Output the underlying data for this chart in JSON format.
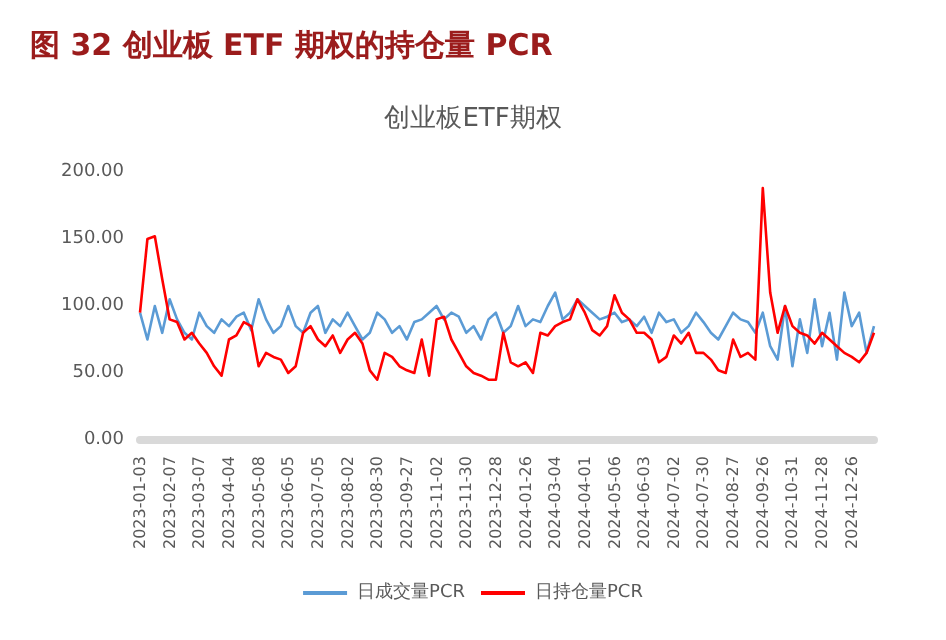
{
  "chart_data": {
    "type": "line",
    "title": "图 32 创业板 ETF 期权的持仓量 PCR",
    "subtitle": "创业板ETF期权",
    "categories": [
      "2023-01-03",
      null,
      null,
      null,
      "2023-02-07",
      null,
      null,
      null,
      "2023-03-07",
      null,
      null,
      null,
      "2023-04-04",
      null,
      null,
      null,
      "2023-05-08",
      null,
      null,
      null,
      "2023-06-05",
      null,
      null,
      null,
      "2023-07-05",
      null,
      null,
      null,
      "2023-08-02",
      null,
      null,
      null,
      "2023-08-30",
      null,
      null,
      null,
      "2023-09-27",
      null,
      null,
      null,
      "2023-11-02",
      null,
      null,
      null,
      "2023-11-30",
      null,
      null,
      null,
      "2023-12-28",
      null,
      null,
      null,
      "2024-01-26",
      null,
      null,
      null,
      "2024-03-04",
      null,
      null,
      null,
      "2024-04-01",
      null,
      null,
      null,
      "2024-05-06",
      null,
      null,
      null,
      "2024-06-03",
      null,
      null,
      null,
      "2024-07-02",
      null,
      null,
      null,
      "2024-07-30",
      null,
      null,
      null,
      "2024-08-27",
      null,
      null,
      null,
      "2024-09-26",
      null,
      null,
      null,
      "2024-10-31",
      null,
      null,
      null,
      "2024-11-28",
      null,
      null,
      null,
      "2024-12-26",
      null,
      null,
      null
    ],
    "series": [
      {
        "name": "日成交量PCR",
        "color": "#5b9bd5",
        "values": [
          95,
          75,
          100,
          80,
          105,
          90,
          80,
          75,
          95,
          85,
          80,
          90,
          85,
          92,
          95,
          82,
          105,
          90,
          80,
          85,
          100,
          85,
          80,
          95,
          100,
          80,
          90,
          85,
          95,
          85,
          75,
          80,
          95,
          90,
          80,
          85,
          75,
          88,
          90,
          95,
          100,
          90,
          95,
          92,
          80,
          85,
          75,
          90,
          95,
          80,
          85,
          100,
          85,
          90,
          88,
          100,
          110,
          90,
          95,
          105,
          100,
          95,
          90,
          92,
          95,
          88,
          90,
          85,
          92,
          80,
          95,
          88,
          90,
          80,
          85,
          95,
          88,
          80,
          75,
          85,
          95,
          90,
          88,
          80,
          95,
          70,
          60,
          100,
          55,
          90,
          65,
          105,
          70,
          95,
          60,
          110,
          85,
          95,
          65,
          85
        ]
      },
      {
        "name": "日持仓量PCR",
        "color": "#ff0000",
        "values": [
          95,
          150,
          152,
          120,
          90,
          88,
          75,
          80,
          72,
          65,
          55,
          48,
          75,
          78,
          88,
          85,
          55,
          65,
          62,
          60,
          50,
          55,
          80,
          85,
          75,
          70,
          78,
          65,
          75,
          80,
          72,
          52,
          45,
          65,
          62,
          55,
          52,
          50,
          75,
          48,
          90,
          92,
          75,
          65,
          55,
          50,
          48,
          45,
          45,
          80,
          58,
          55,
          58,
          50,
          80,
          78,
          85,
          88,
          90,
          105,
          95,
          82,
          78,
          85,
          108,
          95,
          90,
          80,
          80,
          75,
          58,
          62,
          78,
          72,
          80,
          65,
          65,
          60,
          52,
          50,
          75,
          62,
          65,
          60,
          188,
          110,
          80,
          100,
          85,
          80,
          78,
          72,
          80,
          75,
          70,
          65,
          62,
          58,
          65,
          80
        ]
      }
    ],
    "ylim": [
      0,
      200
    ],
    "yticks": [
      {
        "value": 0,
        "label": "0.00"
      },
      {
        "value": 50,
        "label": "50.00"
      },
      {
        "value": 100,
        "label": "100.00"
      },
      {
        "value": 150,
        "label": "150.00"
      },
      {
        "value": 200,
        "label": "200.00"
      }
    ],
    "grid": false,
    "legend": "bottom",
    "marker": "none",
    "line_style": "solid"
  }
}
